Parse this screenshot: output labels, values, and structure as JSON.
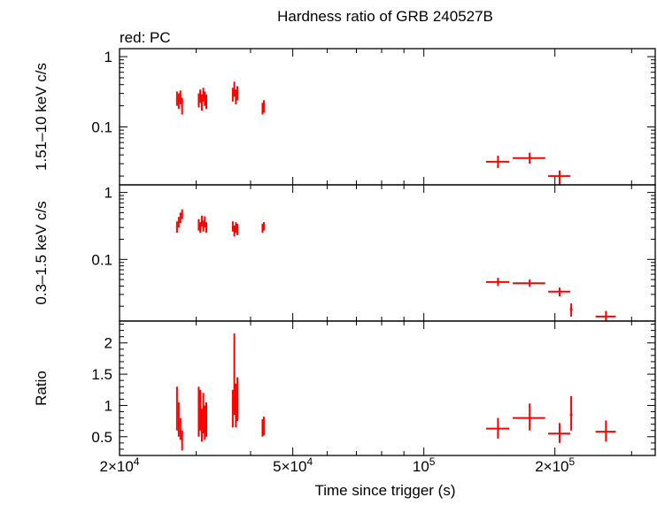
{
  "chart_data": {
    "type": "scatter",
    "title": "Hardness ratio of GRB 240527B",
    "subtitle": "red: PC",
    "xlabel": "Time since trigger (s)",
    "xscale": "log",
    "xlim": [
      20000,
      340000
    ],
    "x_ticks": [
      {
        "value": 20000,
        "base": "2×10",
        "exp": "4"
      },
      {
        "value": 50000,
        "base": "5×10",
        "exp": "4"
      },
      {
        "value": 100000,
        "base": "10",
        "exp": "5"
      },
      {
        "value": 200000,
        "base": "2×10",
        "exp": "5"
      }
    ],
    "color": "#ff0000",
    "panels": [
      {
        "id": "hard",
        "ylabel": "1.51–10 keV c/s",
        "yscale": "log",
        "ylim": [
          0.015,
          1.3
        ],
        "y_ticks": [
          {
            "value": 1,
            "label": "1"
          },
          {
            "value": 0.1,
            "label": "0.1"
          }
        ],
        "points": [
          {
            "x": 27100,
            "y": 0.25,
            "xerr": 120,
            "ylo": 0.2,
            "yhi": 0.32
          },
          {
            "x": 27350,
            "y": 0.23,
            "xerr": 120,
            "ylo": 0.18,
            "yhi": 0.3
          },
          {
            "x": 27600,
            "y": 0.26,
            "xerr": 120,
            "ylo": 0.21,
            "yhi": 0.33
          },
          {
            "x": 27850,
            "y": 0.2,
            "xerr": 120,
            "ylo": 0.15,
            "yhi": 0.26
          },
          {
            "x": 30400,
            "y": 0.24,
            "xerr": 100,
            "ylo": 0.19,
            "yhi": 0.3
          },
          {
            "x": 30650,
            "y": 0.27,
            "xerr": 100,
            "ylo": 0.22,
            "yhi": 0.34
          },
          {
            "x": 30900,
            "y": 0.22,
            "xerr": 100,
            "ylo": 0.17,
            "yhi": 0.29
          },
          {
            "x": 31150,
            "y": 0.29,
            "xerr": 100,
            "ylo": 0.23,
            "yhi": 0.36
          },
          {
            "x": 31400,
            "y": 0.25,
            "xerr": 100,
            "ylo": 0.2,
            "yhi": 0.32
          },
          {
            "x": 31650,
            "y": 0.23,
            "xerr": 100,
            "ylo": 0.18,
            "yhi": 0.29
          },
          {
            "x": 36400,
            "y": 0.29,
            "xerr": 100,
            "ylo": 0.23,
            "yhi": 0.36
          },
          {
            "x": 36700,
            "y": 0.34,
            "xerr": 100,
            "ylo": 0.27,
            "yhi": 0.44
          },
          {
            "x": 37000,
            "y": 0.27,
            "xerr": 100,
            "ylo": 0.21,
            "yhi": 0.34
          },
          {
            "x": 37300,
            "y": 0.3,
            "xerr": 100,
            "ylo": 0.24,
            "yhi": 0.38
          },
          {
            "x": 42600,
            "y": 0.18,
            "xerr": 120,
            "ylo": 0.15,
            "yhi": 0.22
          },
          {
            "x": 42900,
            "y": 0.2,
            "xerr": 120,
            "ylo": 0.16,
            "yhi": 0.24
          },
          {
            "x": 148000,
            "y": 0.032,
            "xerr": 9000,
            "ylo": 0.026,
            "yhi": 0.039
          },
          {
            "x": 175000,
            "y": 0.036,
            "xerr": 15000,
            "ylo": 0.03,
            "yhi": 0.043
          },
          {
            "x": 205000,
            "y": 0.02,
            "xerr": 12000,
            "ylo": 0.015,
            "yhi": 0.024
          }
        ]
      },
      {
        "id": "soft",
        "ylabel": "0.3–1.5 keV c/s",
        "yscale": "log",
        "ylim": [
          0.012,
          1.3
        ],
        "y_ticks": [
          {
            "value": 1,
            "label": "1"
          },
          {
            "value": 0.1,
            "label": "0.1"
          }
        ],
        "points": [
          {
            "x": 27100,
            "y": 0.3,
            "xerr": 120,
            "ylo": 0.25,
            "yhi": 0.37
          },
          {
            "x": 27350,
            "y": 0.36,
            "xerr": 120,
            "ylo": 0.3,
            "yhi": 0.43
          },
          {
            "x": 27600,
            "y": 0.42,
            "xerr": 120,
            "ylo": 0.35,
            "yhi": 0.5
          },
          {
            "x": 27850,
            "y": 0.47,
            "xerr": 120,
            "ylo": 0.4,
            "yhi": 0.56
          },
          {
            "x": 30400,
            "y": 0.33,
            "xerr": 100,
            "ylo": 0.27,
            "yhi": 0.4
          },
          {
            "x": 30650,
            "y": 0.3,
            "xerr": 100,
            "ylo": 0.25,
            "yhi": 0.36
          },
          {
            "x": 30900,
            "y": 0.37,
            "xerr": 100,
            "ylo": 0.31,
            "yhi": 0.45
          },
          {
            "x": 31150,
            "y": 0.32,
            "xerr": 100,
            "ylo": 0.26,
            "yhi": 0.38
          },
          {
            "x": 31400,
            "y": 0.36,
            "xerr": 100,
            "ylo": 0.3,
            "yhi": 0.44
          },
          {
            "x": 31650,
            "y": 0.3,
            "xerr": 100,
            "ylo": 0.25,
            "yhi": 0.36
          },
          {
            "x": 36400,
            "y": 0.31,
            "xerr": 100,
            "ylo": 0.26,
            "yhi": 0.37
          },
          {
            "x": 36700,
            "y": 0.27,
            "xerr": 100,
            "ylo": 0.22,
            "yhi": 0.32
          },
          {
            "x": 37000,
            "y": 0.3,
            "xerr": 100,
            "ylo": 0.25,
            "yhi": 0.36
          },
          {
            "x": 37300,
            "y": 0.28,
            "xerr": 100,
            "ylo": 0.23,
            "yhi": 0.34
          },
          {
            "x": 42600,
            "y": 0.29,
            "xerr": 120,
            "ylo": 0.25,
            "yhi": 0.34
          },
          {
            "x": 42900,
            "y": 0.31,
            "xerr": 120,
            "ylo": 0.27,
            "yhi": 0.36
          },
          {
            "x": 148000,
            "y": 0.046,
            "xerr": 9000,
            "ylo": 0.04,
            "yhi": 0.053
          },
          {
            "x": 175000,
            "y": 0.044,
            "xerr": 15000,
            "ylo": 0.039,
            "yhi": 0.05
          },
          {
            "x": 205000,
            "y": 0.033,
            "xerr": 12000,
            "ylo": 0.028,
            "yhi": 0.038
          },
          {
            "x": 218000,
            "y": 0.018,
            "xerr": 1500,
            "ylo": 0.014,
            "yhi": 0.022
          },
          {
            "x": 262000,
            "y": 0.014,
            "xerr": 14000,
            "ylo": 0.012,
            "yhi": 0.017
          }
        ]
      },
      {
        "id": "ratio",
        "ylabel": "Ratio",
        "yscale": "linear",
        "ylim": [
          0.2,
          2.35
        ],
        "y_ticks": [
          {
            "value": 0.5,
            "label": "0.5"
          },
          {
            "value": 1,
            "label": "1"
          },
          {
            "value": 1.5,
            "label": "1.5"
          },
          {
            "value": 2,
            "label": "2"
          }
        ],
        "points": [
          {
            "x": 27100,
            "y": 0.85,
            "xerr": 120,
            "ylo": 0.6,
            "yhi": 1.3
          },
          {
            "x": 27350,
            "y": 0.7,
            "xerr": 120,
            "ylo": 0.5,
            "yhi": 1.05
          },
          {
            "x": 27600,
            "y": 0.6,
            "xerr": 120,
            "ylo": 0.45,
            "yhi": 0.8
          },
          {
            "x": 27850,
            "y": 0.45,
            "xerr": 120,
            "ylo": 0.28,
            "yhi": 0.6
          },
          {
            "x": 30400,
            "y": 0.8,
            "xerr": 100,
            "ylo": 0.5,
            "yhi": 1.3
          },
          {
            "x": 30650,
            "y": 0.9,
            "xerr": 100,
            "ylo": 0.6,
            "yhi": 1.25
          },
          {
            "x": 30900,
            "y": 0.65,
            "xerr": 100,
            "ylo": 0.42,
            "yhi": 0.95
          },
          {
            "x": 31150,
            "y": 0.85,
            "xerr": 100,
            "ylo": 0.55,
            "yhi": 1.2
          },
          {
            "x": 31400,
            "y": 0.7,
            "xerr": 100,
            "ylo": 0.45,
            "yhi": 1.0
          },
          {
            "x": 31650,
            "y": 0.75,
            "xerr": 100,
            "ylo": 0.5,
            "yhi": 1.05
          },
          {
            "x": 36400,
            "y": 0.9,
            "xerr": 100,
            "ylo": 0.65,
            "yhi": 1.25
          },
          {
            "x": 36700,
            "y": 1.25,
            "xerr": 100,
            "ylo": 0.85,
            "yhi": 2.15
          },
          {
            "x": 37000,
            "y": 0.9,
            "xerr": 100,
            "ylo": 0.65,
            "yhi": 1.35
          },
          {
            "x": 37300,
            "y": 1.05,
            "xerr": 100,
            "ylo": 0.75,
            "yhi": 1.45
          },
          {
            "x": 42600,
            "y": 0.62,
            "xerr": 120,
            "ylo": 0.5,
            "yhi": 0.78
          },
          {
            "x": 42900,
            "y": 0.66,
            "xerr": 120,
            "ylo": 0.52,
            "yhi": 0.82
          },
          {
            "x": 148000,
            "y": 0.63,
            "xerr": 9000,
            "ylo": 0.47,
            "yhi": 0.8
          },
          {
            "x": 175000,
            "y": 0.8,
            "xerr": 15000,
            "ylo": 0.6,
            "yhi": 1.03
          },
          {
            "x": 205000,
            "y": 0.55,
            "xerr": 12000,
            "ylo": 0.4,
            "yhi": 0.72
          },
          {
            "x": 218000,
            "y": 0.85,
            "xerr": 1500,
            "ylo": 0.6,
            "yhi": 1.15
          },
          {
            "x": 262000,
            "y": 0.58,
            "xerr": 14000,
            "ylo": 0.42,
            "yhi": 0.76
          }
        ]
      }
    ]
  }
}
